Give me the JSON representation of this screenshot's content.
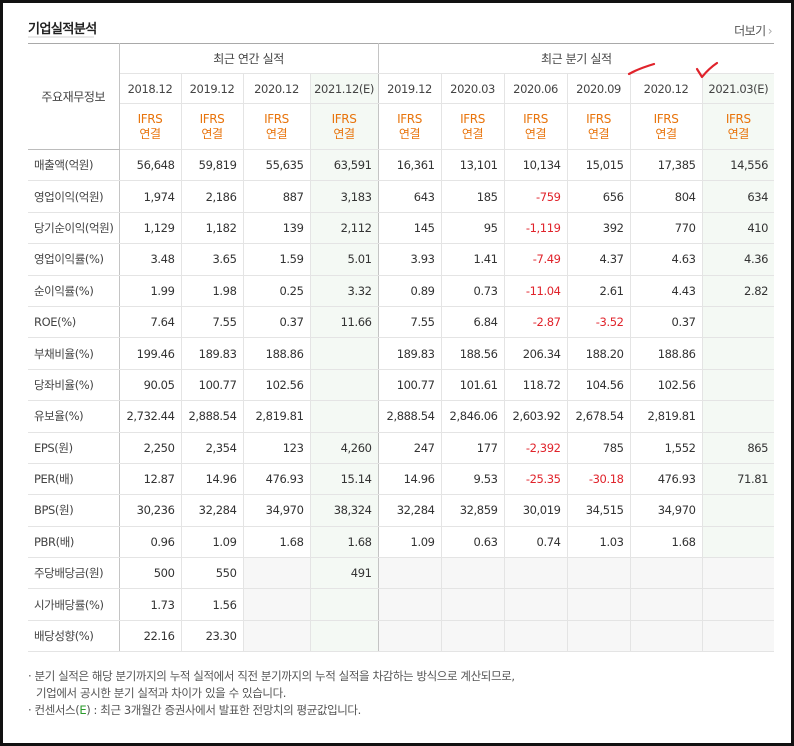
{
  "title": "기업실적분석",
  "more_label": "더보기",
  "header": {
    "label_col": "주요재무정보",
    "annual_group": "최근 연간 실적",
    "quarter_group": "최근 분기 실적",
    "annual_periods": [
      "2018.12",
      "2019.12",
      "2020.12",
      "2021.12(E)"
    ],
    "quarter_periods": [
      "2019.12",
      "2020.03",
      "2020.06",
      "2020.09",
      "2020.12",
      "2021.03(E)"
    ],
    "ifrs_line1": "IFRS",
    "ifrs_line2": "연결"
  },
  "rows": [
    {
      "label": "매출액(억원)",
      "annual": [
        "56,648",
        "59,819",
        "55,635",
        "63,591"
      ],
      "quarter": [
        "16,361",
        "13,101",
        "10,134",
        "15,015",
        "17,385",
        "14,556"
      ]
    },
    {
      "label": "영업이익(억원)",
      "annual": [
        "1,974",
        "2,186",
        "887",
        "3,183"
      ],
      "quarter": [
        "643",
        "185",
        "-759",
        "656",
        "804",
        "634"
      ]
    },
    {
      "label": "당기순이익(억원)",
      "annual": [
        "1,129",
        "1,182",
        "139",
        "2,112"
      ],
      "quarter": [
        "145",
        "95",
        "-1,119",
        "392",
        "770",
        "410"
      ]
    },
    {
      "label": "영업이익률(%)",
      "annual": [
        "3.48",
        "3.65",
        "1.59",
        "5.01"
      ],
      "quarter": [
        "3.93",
        "1.41",
        "-7.49",
        "4.37",
        "4.63",
        "4.36"
      ]
    },
    {
      "label": "순이익률(%)",
      "annual": [
        "1.99",
        "1.98",
        "0.25",
        "3.32"
      ],
      "quarter": [
        "0.89",
        "0.73",
        "-11.04",
        "2.61",
        "4.43",
        "2.82"
      ]
    },
    {
      "label": "ROE(%)",
      "annual": [
        "7.64",
        "7.55",
        "0.37",
        "11.66"
      ],
      "quarter": [
        "7.55",
        "6.84",
        "-2.87",
        "-3.52",
        "0.37",
        ""
      ]
    },
    {
      "label": "부채비율(%)",
      "annual": [
        "199.46",
        "189.83",
        "188.86",
        ""
      ],
      "quarter": [
        "189.83",
        "188.56",
        "206.34",
        "188.20",
        "188.86",
        ""
      ]
    },
    {
      "label": "당좌비율(%)",
      "annual": [
        "90.05",
        "100.77",
        "102.56",
        ""
      ],
      "quarter": [
        "100.77",
        "101.61",
        "118.72",
        "104.56",
        "102.56",
        ""
      ]
    },
    {
      "label": "유보율(%)",
      "annual": [
        "2,732.44",
        "2,888.54",
        "2,819.81",
        ""
      ],
      "quarter": [
        "2,888.54",
        "2,846.06",
        "2,603.92",
        "2,678.54",
        "2,819.81",
        ""
      ]
    },
    {
      "label": "EPS(원)",
      "annual": [
        "2,250",
        "2,354",
        "123",
        "4,260"
      ],
      "quarter": [
        "247",
        "177",
        "-2,392",
        "785",
        "1,552",
        "865"
      ]
    },
    {
      "label": "PER(배)",
      "annual": [
        "12.87",
        "14.96",
        "476.93",
        "15.14"
      ],
      "quarter": [
        "14.96",
        "9.53",
        "-25.35",
        "-30.18",
        "476.93",
        "71.81"
      ]
    },
    {
      "label": "BPS(원)",
      "annual": [
        "30,236",
        "32,284",
        "34,970",
        "38,324"
      ],
      "quarter": [
        "32,284",
        "32,859",
        "30,019",
        "34,515",
        "34,970",
        ""
      ]
    },
    {
      "label": "PBR(배)",
      "annual": [
        "0.96",
        "1.09",
        "1.68",
        "1.68"
      ],
      "quarter": [
        "1.09",
        "0.63",
        "0.74",
        "1.03",
        "1.68",
        ""
      ]
    },
    {
      "label": "주당배당금(원)",
      "annual": [
        "500",
        "550",
        "",
        "491"
      ],
      "quarter": [
        "",
        "",
        "",
        "",
        "",
        ""
      ]
    },
    {
      "label": "시가배당률(%)",
      "annual": [
        "1.73",
        "1.56",
        "",
        ""
      ],
      "quarter": [
        "",
        "",
        "",
        "",
        "",
        ""
      ]
    },
    {
      "label": "배당성향(%)",
      "annual": [
        "22.16",
        "23.30",
        "",
        ""
      ],
      "quarter": [
        "",
        "",
        "",
        "",
        "",
        ""
      ]
    }
  ],
  "notes": {
    "line1": "· 분기 실적은 해당 분기까지의 누적 실적에서 직전 분기까지의 누적 실적을 차감하는 방식으로 계산되므로,",
    "line2": "기업에서 공시한 분기 실적과 차이가 있을 수 있습니다.",
    "line3_pre": "· 컨센서스(",
    "line3_e": "E",
    "line3_post": ") : 최근 3개월간 증권사에서 발표한 전망치의 평균값입니다."
  },
  "colors": {
    "ifrs": "#e8740c",
    "negative": "#e0232b",
    "estimate_bg": "#f4f9f4",
    "annotation": "#e0232b"
  }
}
